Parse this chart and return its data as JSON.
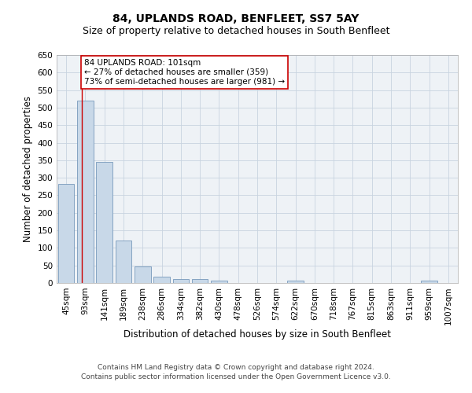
{
  "title": "84, UPLANDS ROAD, BENFLEET, SS7 5AY",
  "subtitle": "Size of property relative to detached houses in South Benfleet",
  "xlabel": "Distribution of detached houses by size in South Benfleet",
  "ylabel": "Number of detached properties",
  "categories": [
    "45sqm",
    "93sqm",
    "141sqm",
    "189sqm",
    "238sqm",
    "286sqm",
    "334sqm",
    "382sqm",
    "430sqm",
    "478sqm",
    "526sqm",
    "574sqm",
    "622sqm",
    "670sqm",
    "718sqm",
    "767sqm",
    "815sqm",
    "863sqm",
    "911sqm",
    "959sqm",
    "1007sqm"
  ],
  "values": [
    282,
    521,
    346,
    122,
    48,
    17,
    11,
    11,
    6,
    0,
    0,
    0,
    7,
    0,
    0,
    0,
    0,
    0,
    0,
    6,
    0
  ],
  "bar_color": "#c8d8e8",
  "bar_edge_color": "#7799bb",
  "property_line_color": "#cc0000",
  "annotation_text": "84 UPLANDS ROAD: 101sqm\n← 27% of detached houses are smaller (359)\n73% of semi-detached houses are larger (981) →",
  "annotation_box_color": "#ffffff",
  "annotation_box_edge": "#cc0000",
  "ylim": [
    0,
    650
  ],
  "yticks": [
    0,
    50,
    100,
    150,
    200,
    250,
    300,
    350,
    400,
    450,
    500,
    550,
    600,
    650
  ],
  "footer1": "Contains HM Land Registry data © Crown copyright and database right 2024.",
  "footer2": "Contains public sector information licensed under the Open Government Licence v3.0.",
  "title_fontsize": 10,
  "subtitle_fontsize": 9,
  "axis_label_fontsize": 8.5,
  "tick_fontsize": 7.5,
  "annotation_fontsize": 7.5,
  "footer_fontsize": 6.5,
  "grid_color": "#c8d4e0",
  "bg_color": "#eef2f6"
}
